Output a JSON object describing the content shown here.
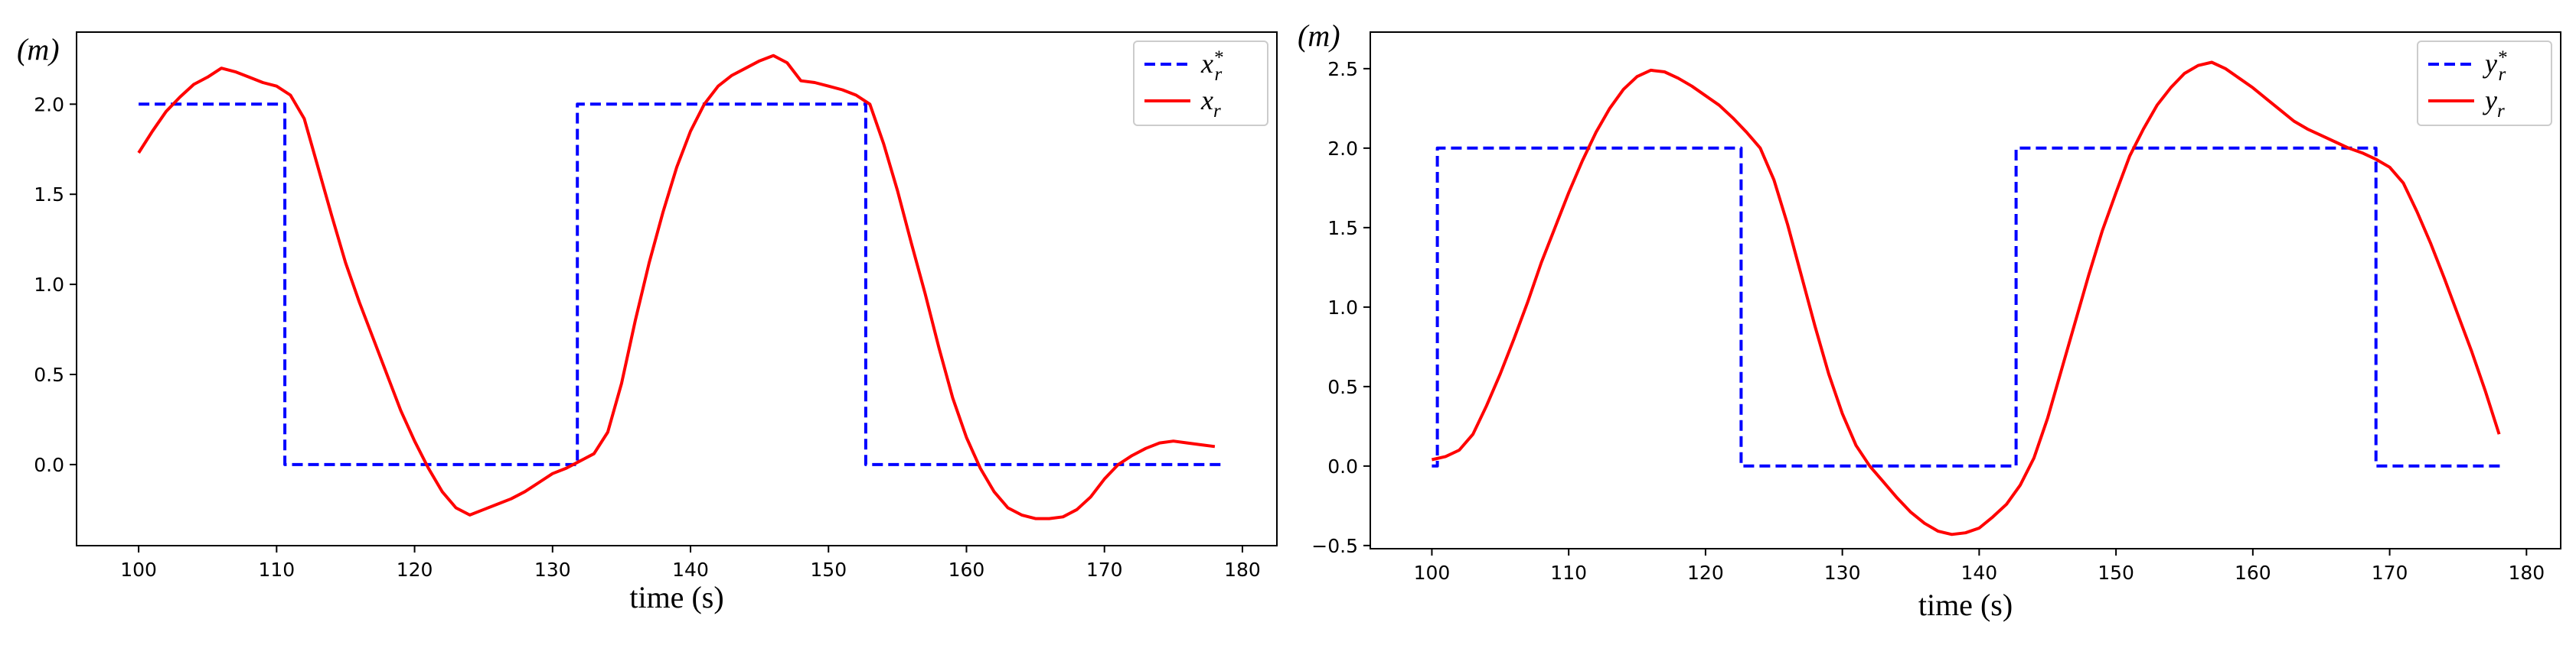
{
  "chart_data": [
    {
      "type": "line",
      "id": "x",
      "unit_label": "(m)",
      "xlabel": "time (s)",
      "ylabel": "",
      "xlim": [
        95.5,
        182.5
      ],
      "ylim": [
        -0.45,
        2.4
      ],
      "xticks": [
        100,
        110,
        120,
        130,
        140,
        150,
        160,
        170,
        180
      ],
      "yticks": [
        0.0,
        0.5,
        1.0,
        1.5,
        2.0
      ],
      "grid": false,
      "legend_position": "top-right",
      "series": [
        {
          "name": "x_r^*",
          "legend_base": "x",
          "legend_sub": "r",
          "legend_sup": "*",
          "color": "#0000ff",
          "style": "dashed",
          "x": [
            100,
            110.6,
            110.6,
            131.8,
            131.8,
            152.7,
            152.7,
            178.5
          ],
          "y": [
            2.0,
            2.0,
            0.0,
            0.0,
            2.0,
            2.0,
            0.0,
            0.0
          ]
        },
        {
          "name": "x_r",
          "legend_base": "x",
          "legend_sub": "r",
          "legend_sup": "",
          "color": "#ff0000",
          "style": "solid",
          "x": [
            100,
            101,
            102,
            103,
            104,
            105,
            106,
            107,
            108,
            109,
            110,
            111,
            112,
            113,
            114,
            115,
            116,
            117,
            118,
            119,
            120,
            121,
            122,
            123,
            124,
            125,
            126,
            127,
            128,
            129,
            130,
            131,
            132,
            133,
            134,
            135,
            136,
            137,
            138,
            139,
            140,
            141,
            142,
            143,
            144,
            145,
            146,
            147,
            148,
            149,
            150,
            151,
            152,
            153,
            154,
            155,
            156,
            157,
            158,
            159,
            160,
            161,
            162,
            163,
            164,
            165,
            166,
            167,
            168,
            169,
            170,
            171,
            172,
            173,
            174,
            175,
            176,
            177,
            178
          ],
          "y": [
            1.73,
            1.85,
            1.96,
            2.04,
            2.11,
            2.15,
            2.2,
            2.18,
            2.15,
            2.12,
            2.1,
            2.05,
            1.92,
            1.65,
            1.38,
            1.12,
            0.9,
            0.7,
            0.5,
            0.3,
            0.13,
            -0.02,
            -0.15,
            -0.24,
            -0.28,
            -0.25,
            -0.22,
            -0.19,
            -0.15,
            -0.1,
            -0.05,
            -0.02,
            0.02,
            0.06,
            0.18,
            0.45,
            0.8,
            1.12,
            1.4,
            1.65,
            1.85,
            2.0,
            2.1,
            2.16,
            2.2,
            2.24,
            2.27,
            2.23,
            2.13,
            2.12,
            2.1,
            2.08,
            2.05,
            2.0,
            1.78,
            1.52,
            1.23,
            0.95,
            0.65,
            0.37,
            0.15,
            -0.02,
            -0.15,
            -0.24,
            -0.28,
            -0.3,
            -0.3,
            -0.29,
            -0.25,
            -0.18,
            -0.08,
            0.0,
            0.05,
            0.09,
            0.12,
            0.13,
            0.12,
            0.11,
            0.1
          ]
        }
      ]
    },
    {
      "type": "line",
      "id": "y",
      "unit_label": "(m)",
      "xlabel": "time (s)",
      "ylabel": "",
      "xlim": [
        95.5,
        182.5
      ],
      "ylim": [
        -0.52,
        2.73
      ],
      "xticks": [
        100,
        110,
        120,
        130,
        140,
        150,
        160,
        170,
        180
      ],
      "yticks": [
        -0.5,
        0.0,
        0.5,
        1.0,
        1.5,
        2.0,
        2.5
      ],
      "grid": false,
      "legend_position": "top-right",
      "series": [
        {
          "name": "y_r^*",
          "legend_base": "y",
          "legend_sub": "r",
          "legend_sup": "*",
          "color": "#0000ff",
          "style": "dashed",
          "x": [
            100,
            100.4,
            100.4,
            122.6,
            122.6,
            142.7,
            142.7,
            169.0,
            169.0,
            178.3
          ],
          "y": [
            0.0,
            0.0,
            2.0,
            2.0,
            0.0,
            0.0,
            2.0,
            2.0,
            0.0,
            0.0
          ]
        },
        {
          "name": "y_r",
          "legend_base": "y",
          "legend_sub": "r",
          "legend_sup": "",
          "color": "#ff0000",
          "style": "solid",
          "x": [
            100,
            101,
            102,
            103,
            104,
            105,
            106,
            107,
            108,
            109,
            110,
            111,
            112,
            113,
            114,
            115,
            116,
            117,
            118,
            119,
            120,
            121,
            122,
            123,
            124,
            125,
            126,
            127,
            128,
            129,
            130,
            131,
            132,
            133,
            134,
            135,
            136,
            137,
            138,
            139,
            140,
            141,
            142,
            143,
            144,
            145,
            146,
            147,
            148,
            149,
            150,
            151,
            152,
            153,
            154,
            155,
            156,
            157,
            158,
            159,
            160,
            161,
            162,
            163,
            164,
            165,
            166,
            167,
            168,
            169,
            170,
            171,
            172,
            173,
            174,
            175,
            176,
            177,
            178
          ],
          "y": [
            0.04,
            0.06,
            0.1,
            0.2,
            0.38,
            0.58,
            0.8,
            1.03,
            1.28,
            1.5,
            1.72,
            1.92,
            2.1,
            2.25,
            2.37,
            2.45,
            2.49,
            2.48,
            2.44,
            2.39,
            2.33,
            2.27,
            2.19,
            2.1,
            2.0,
            1.8,
            1.52,
            1.2,
            0.88,
            0.58,
            0.33,
            0.13,
            0.0,
            -0.1,
            -0.2,
            -0.29,
            -0.36,
            -0.41,
            -0.43,
            -0.42,
            -0.39,
            -0.32,
            -0.24,
            -0.12,
            0.05,
            0.3,
            0.6,
            0.9,
            1.2,
            1.48,
            1.72,
            1.95,
            2.12,
            2.27,
            2.38,
            2.47,
            2.52,
            2.54,
            2.5,
            2.44,
            2.38,
            2.31,
            2.24,
            2.17,
            2.12,
            2.08,
            2.04,
            2.0,
            1.97,
            1.93,
            1.88,
            1.78,
            1.6,
            1.4,
            1.18,
            0.95,
            0.72,
            0.47,
            0.2
          ]
        }
      ]
    }
  ]
}
